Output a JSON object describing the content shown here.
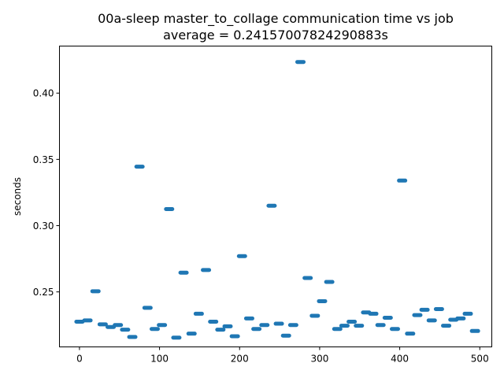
{
  "chart_data": {
    "type": "scatter",
    "title": "00a-sleep master_to_collage communication time vs job",
    "subtitle": "average = 0.24157007824290883s",
    "xlabel": "",
    "ylabel": "seconds",
    "xlim": [
      -25,
      515
    ],
    "ylim": [
      0.2085,
      0.4355
    ],
    "xticks": [
      0,
      100,
      200,
      300,
      400,
      500
    ],
    "yticks": [
      0.25,
      0.3,
      0.35,
      0.4
    ],
    "ytick_labels": [
      "0.25",
      "0.30",
      "0.35",
      "0.40"
    ],
    "grid": false,
    "legend": "none",
    "series_color": "#1f77b4",
    "points": [
      {
        "x": 0,
        "y": 0.2275
      },
      {
        "x": 10,
        "y": 0.2285
      },
      {
        "x": 20,
        "y": 0.2505
      },
      {
        "x": 29,
        "y": 0.2255
      },
      {
        "x": 39,
        "y": 0.2235
      },
      {
        "x": 48,
        "y": 0.225
      },
      {
        "x": 57,
        "y": 0.2215
      },
      {
        "x": 66,
        "y": 0.216
      },
      {
        "x": 75,
        "y": 0.3445
      },
      {
        "x": 85,
        "y": 0.238
      },
      {
        "x": 94,
        "y": 0.222
      },
      {
        "x": 103,
        "y": 0.225
      },
      {
        "x": 112,
        "y": 0.3125
      },
      {
        "x": 121,
        "y": 0.2155
      },
      {
        "x": 130,
        "y": 0.2645
      },
      {
        "x": 140,
        "y": 0.2185
      },
      {
        "x": 149,
        "y": 0.2335
      },
      {
        "x": 158,
        "y": 0.2665
      },
      {
        "x": 167,
        "y": 0.2275
      },
      {
        "x": 176,
        "y": 0.2215
      },
      {
        "x": 185,
        "y": 0.224
      },
      {
        "x": 194,
        "y": 0.2165
      },
      {
        "x": 203,
        "y": 0.277
      },
      {
        "x": 212,
        "y": 0.23
      },
      {
        "x": 221,
        "y": 0.222
      },
      {
        "x": 231,
        "y": 0.225
      },
      {
        "x": 240,
        "y": 0.315
      },
      {
        "x": 249,
        "y": 0.226
      },
      {
        "x": 258,
        "y": 0.217
      },
      {
        "x": 267,
        "y": 0.225
      },
      {
        "x": 276,
        "y": 0.4235
      },
      {
        "x": 285,
        "y": 0.2605
      },
      {
        "x": 294,
        "y": 0.232
      },
      {
        "x": 303,
        "y": 0.243
      },
      {
        "x": 312,
        "y": 0.2575
      },
      {
        "x": 322,
        "y": 0.222
      },
      {
        "x": 331,
        "y": 0.2245
      },
      {
        "x": 340,
        "y": 0.2275
      },
      {
        "x": 349,
        "y": 0.2245
      },
      {
        "x": 358,
        "y": 0.2345
      },
      {
        "x": 367,
        "y": 0.2335
      },
      {
        "x": 376,
        "y": 0.225
      },
      {
        "x": 385,
        "y": 0.2305
      },
      {
        "x": 394,
        "y": 0.222
      },
      {
        "x": 403,
        "y": 0.334
      },
      {
        "x": 413,
        "y": 0.2185
      },
      {
        "x": 422,
        "y": 0.2325
      },
      {
        "x": 431,
        "y": 0.2365
      },
      {
        "x": 440,
        "y": 0.2285
      },
      {
        "x": 449,
        "y": 0.237
      },
      {
        "x": 458,
        "y": 0.2245
      },
      {
        "x": 467,
        "y": 0.229
      },
      {
        "x": 476,
        "y": 0.23
      },
      {
        "x": 485,
        "y": 0.2335
      },
      {
        "x": 494,
        "y": 0.2205
      }
    ]
  }
}
